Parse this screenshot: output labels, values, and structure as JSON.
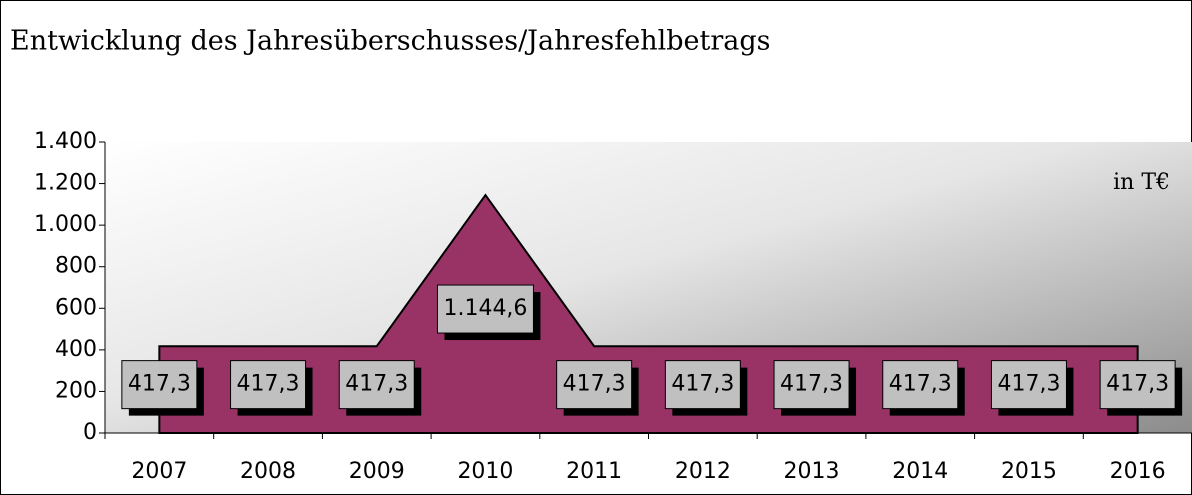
{
  "chart_data": {
    "type": "area",
    "title": "Entwicklung des Jahresüberschusses/Jahresfehlbetrags",
    "annotation": "in T€",
    "categories": [
      "2007",
      "2008",
      "2009",
      "2010",
      "2011",
      "2012",
      "2013",
      "2014",
      "2015",
      "2016"
    ],
    "values": [
      417.3,
      417.3,
      417.3,
      1144.6,
      417.3,
      417.3,
      417.3,
      417.3,
      417.3,
      417.3
    ],
    "value_labels": [
      "417,3",
      "417,3",
      "417,3",
      "1.144,6",
      "417,3",
      "417,3",
      "417,3",
      "417,3",
      "417,3",
      "417,3"
    ],
    "color": "#993366",
    "ylim": [
      0,
      1400
    ],
    "yticks": [
      0,
      200,
      400,
      600,
      800,
      {
        "value": 1000,
        "label": "1.000"
      },
      {
        "value": 1200,
        "label": "1.200"
      },
      {
        "value": 1400,
        "label": "1.400"
      }
    ]
  }
}
